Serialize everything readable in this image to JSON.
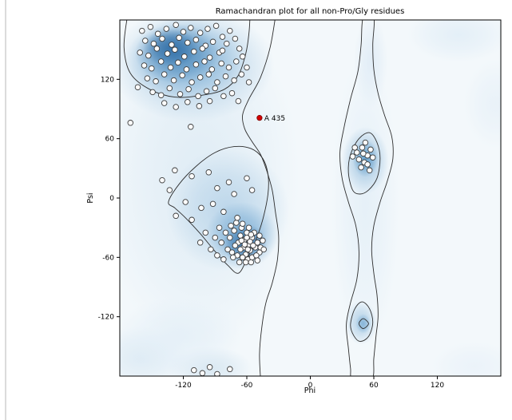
{
  "chart_data": {
    "type": "scatter",
    "title": "Ramachandran plot for all non-Pro/Gly residues",
    "xlabel": "Phi",
    "ylabel": "Psi",
    "xlim": [
      -180,
      180
    ],
    "ylim": [
      -180,
      180
    ],
    "xticks": [
      -120,
      -60,
      0,
      60,
      120
    ],
    "yticks": [
      120,
      60,
      0,
      -60,
      -120
    ],
    "grid": false,
    "legend": "none",
    "annotation": {
      "label": "A 435",
      "phi": -48,
      "psi": 81,
      "color": "#d40000"
    },
    "colors": {
      "figure_bg": "#ffffff",
      "plot_bg": "#f3f8fb",
      "contour_line": "#2d2d2d",
      "point_fill": "#fcfcfc",
      "point_edge": "#3c3c3c",
      "axis": "#000000"
    },
    "points": [
      [
        -159,
        169
      ],
      [
        -151,
        173
      ],
      [
        -144,
        166
      ],
      [
        -136,
        171
      ],
      [
        -127,
        175
      ],
      [
        -120,
        168
      ],
      [
        -113,
        172
      ],
      [
        -104,
        167
      ],
      [
        -97,
        171
      ],
      [
        -89,
        174
      ],
      [
        -156,
        159
      ],
      [
        -148,
        156
      ],
      [
        -140,
        161
      ],
      [
        -131,
        155
      ],
      [
        -124,
        162
      ],
      [
        -116,
        157
      ],
      [
        -108,
        160
      ],
      [
        -99,
        154
      ],
      [
        -92,
        158
      ],
      [
        -83,
        163
      ],
      [
        -161,
        147
      ],
      [
        -153,
        144
      ],
      [
        -145,
        151
      ],
      [
        -135,
        146
      ],
      [
        -128,
        150
      ],
      [
        -119,
        143
      ],
      [
        -110,
        148
      ],
      [
        -102,
        151
      ],
      [
        -95,
        142
      ],
      [
        -86,
        147
      ],
      [
        -76,
        169
      ],
      [
        -71,
        161
      ],
      [
        -67,
        151
      ],
      [
        -79,
        156
      ],
      [
        -83,
        149
      ],
      [
        -64,
        143
      ],
      [
        -157,
        134
      ],
      [
        -150,
        131
      ],
      [
        -141,
        138
      ],
      [
        -132,
        132
      ],
      [
        -125,
        137
      ],
      [
        -117,
        130
      ],
      [
        -108,
        135
      ],
      [
        -100,
        138
      ],
      [
        -93,
        130
      ],
      [
        -84,
        136
      ],
      [
        -77,
        132
      ],
      [
        -70,
        138
      ],
      [
        -154,
        121
      ],
      [
        -146,
        118
      ],
      [
        -138,
        125
      ],
      [
        -129,
        119
      ],
      [
        -121,
        124
      ],
      [
        -112,
        117
      ],
      [
        -104,
        122
      ],
      [
        -96,
        125
      ],
      [
        -88,
        117
      ],
      [
        -80,
        123
      ],
      [
        -72,
        119
      ],
      [
        -65,
        125
      ],
      [
        -149,
        107
      ],
      [
        -141,
        104
      ],
      [
        -133,
        111
      ],
      [
        -123,
        105
      ],
      [
        -115,
        110
      ],
      [
        -106,
        103
      ],
      [
        -98,
        108
      ],
      [
        -90,
        111
      ],
      [
        -82,
        103
      ],
      [
        -138,
        96
      ],
      [
        -127,
        92
      ],
      [
        -116,
        97
      ],
      [
        -105,
        93
      ],
      [
        -95,
        98
      ],
      [
        -74,
        106
      ],
      [
        -163,
        112
      ],
      [
        -68,
        98
      ],
      [
        -60,
        132
      ],
      [
        -58,
        117
      ],
      [
        -170,
        76
      ],
      [
        -113,
        72
      ],
      [
        -128,
        28
      ],
      [
        -112,
        22
      ],
      [
        -96,
        26
      ],
      [
        -133,
        8
      ],
      [
        -88,
        10
      ],
      [
        -118,
        -4
      ],
      [
        -103,
        -10
      ],
      [
        -77,
        16
      ],
      [
        -72,
        4
      ],
      [
        -92,
        -6
      ],
      [
        -127,
        -18
      ],
      [
        -112,
        -22
      ],
      [
        -82,
        -14
      ],
      [
        -140,
        18
      ],
      [
        -60,
        20
      ],
      [
        -55,
        8
      ],
      [
        -70,
        -25
      ],
      [
        -65,
        -30
      ],
      [
        -60,
        -35
      ],
      [
        -55,
        -40
      ],
      [
        -50,
        -45
      ],
      [
        -62,
        -42
      ],
      [
        -58,
        -47
      ],
      [
        -66,
        -38
      ],
      [
        -72,
        -33
      ],
      [
        -76,
        -40
      ],
      [
        -68,
        -45
      ],
      [
        -63,
        -50
      ],
      [
        -57,
        -53
      ],
      [
        -52,
        -50
      ],
      [
        -48,
        -55
      ],
      [
        -61,
        -57
      ],
      [
        -66,
        -52
      ],
      [
        -71,
        -48
      ],
      [
        -74,
        -55
      ],
      [
        -59,
        -62
      ],
      [
        -64,
        -60
      ],
      [
        -69,
        -58
      ],
      [
        -55,
        -60
      ],
      [
        -51,
        -58
      ],
      [
        -47,
        -50
      ],
      [
        -45,
        -43
      ],
      [
        -53,
        -35
      ],
      [
        -58,
        -30
      ],
      [
        -64,
        -26
      ],
      [
        -69,
        -20
      ],
      [
        -75,
        -28
      ],
      [
        -80,
        -35
      ],
      [
        -84,
        -45
      ],
      [
        -78,
        -52
      ],
      [
        -73,
        -60
      ],
      [
        -67,
        -65
      ],
      [
        -61,
        -65
      ],
      [
        -56,
        -65
      ],
      [
        -86,
        -30
      ],
      [
        -90,
        -40
      ],
      [
        -94,
        -52
      ],
      [
        -88,
        -58
      ],
      [
        -82,
        -62
      ],
      [
        -99,
        -35
      ],
      [
        -104,
        -45
      ],
      [
        -48,
        -38
      ],
      [
        -44,
        -52
      ],
      [
        -50,
        -63
      ],
      [
        -57,
        -44
      ],
      [
        -54,
        -48
      ],
      [
        -59,
        -52
      ],
      [
        -65,
        -43
      ],
      [
        -60,
        -40
      ],
      [
        -56,
        -37
      ],
      [
        -62,
        -47
      ],
      [
        44,
        46
      ],
      [
        49,
        51
      ],
      [
        54,
        43
      ],
      [
        51,
        36
      ],
      [
        57,
        49
      ],
      [
        46,
        39
      ],
      [
        52,
        56
      ],
      [
        59,
        41
      ],
      [
        48,
        31
      ],
      [
        54,
        34
      ],
      [
        42,
        51
      ],
      [
        50,
        45
      ],
      [
        56,
        28
      ],
      [
        40,
        42
      ],
      [
        -102,
        -177
      ],
      [
        -95,
        -171
      ],
      [
        -88,
        -178
      ],
      [
        -110,
        -174
      ],
      [
        -76,
        -173
      ]
    ],
    "density_regions": [
      {
        "cx": -105,
        "cy": 20,
        "rx": 95,
        "ry": 175,
        "color": "#dceaf4",
        "opacity": 0.85
      },
      {
        "cx": -112,
        "cy": 135,
        "rx": 78,
        "ry": 58,
        "color": "#aecde5",
        "opacity": 0.9
      },
      {
        "cx": -118,
        "cy": 140,
        "rx": 56,
        "ry": 42,
        "color": "#7fb0d6",
        "opacity": 0.85
      },
      {
        "cx": -126,
        "cy": 146,
        "rx": 40,
        "ry": 30,
        "color": "#4a86b8",
        "opacity": 0.85
      },
      {
        "cx": -132,
        "cy": 152,
        "rx": 26,
        "ry": 19,
        "color": "#2e6ba4",
        "opacity": 0.8
      },
      {
        "cx": -78,
        "cy": -12,
        "rx": 58,
        "ry": 62,
        "color": "#b5d2e8",
        "opacity": 0.85
      },
      {
        "cx": -65,
        "cy": -38,
        "rx": 34,
        "ry": 34,
        "color": "#74a9d2",
        "opacity": 0.85
      },
      {
        "cx": -62,
        "cy": -46,
        "rx": 21,
        "ry": 20,
        "color": "#2f6da6",
        "opacity": 0.85
      },
      {
        "cx": 52,
        "cy": -5,
        "rx": 32,
        "ry": 150,
        "color": "#e2eef7",
        "opacity": 0.8
      },
      {
        "cx": 57,
        "cy": 138,
        "rx": 16,
        "ry": 48,
        "color": "#e0ecf6",
        "opacity": 0.9
      },
      {
        "cx": 52,
        "cy": 38,
        "rx": 22,
        "ry": 34,
        "color": "#9fc4e0",
        "opacity": 0.9
      },
      {
        "cx": 52,
        "cy": 40,
        "rx": 12,
        "ry": 19,
        "color": "#5f9bc8",
        "opacity": 0.9
      },
      {
        "cx": 48,
        "cy": -126,
        "rx": 15,
        "ry": 22,
        "color": "#a9cbe4",
        "opacity": 0.85
      },
      {
        "cx": 50,
        "cy": -127,
        "rx": 7,
        "ry": 10,
        "color": "#7fb0d6",
        "opacity": 0.85
      },
      {
        "cx": 140,
        "cy": 165,
        "rx": 48,
        "ry": 28,
        "color": "#e2eef7",
        "opacity": 0.9
      },
      {
        "cx": 175,
        "cy": 95,
        "rx": 30,
        "ry": 45,
        "color": "#e8f1f8",
        "opacity": 0.9
      },
      {
        "cx": -160,
        "cy": -162,
        "rx": 45,
        "ry": 32,
        "color": "#dceaf4",
        "opacity": 0.9
      },
      {
        "cx": -95,
        "cy": -172,
        "rx": 40,
        "ry": 22,
        "color": "#d6e6f1",
        "opacity": 0.9
      },
      {
        "cx": -125,
        "cy": -140,
        "rx": 60,
        "ry": 40,
        "color": "#e2eef7",
        "opacity": 0.8
      },
      {
        "cx": 155,
        "cy": -170,
        "rx": 40,
        "ry": 25,
        "color": "#eaf2f9",
        "opacity": 0.9
      }
    ],
    "contours": [
      {
        "name": "left-outer",
        "closed": false,
        "points": [
          [
            -33,
            183
          ],
          [
            -38,
            152
          ],
          [
            -47,
            122
          ],
          [
            -58,
            100
          ],
          [
            -64,
            84
          ],
          [
            -62,
            70
          ],
          [
            -55,
            57
          ],
          [
            -47,
            44
          ],
          [
            -41,
            27
          ],
          [
            -36,
            8
          ],
          [
            -33,
            -14
          ],
          [
            -30,
            -38
          ],
          [
            -31,
            -62
          ],
          [
            -36,
            -86
          ],
          [
            -42,
            -106
          ],
          [
            -46,
            -132
          ],
          [
            -48,
            -158
          ],
          [
            -47,
            -183
          ]
        ]
      },
      {
        "name": "beta-inner",
        "closed": false,
        "points": [
          [
            -173,
            183
          ],
          [
            -176,
            152
          ],
          [
            -170,
            126
          ],
          [
            -152,
            110
          ],
          [
            -128,
            102
          ],
          [
            -102,
            104
          ],
          [
            -81,
            110
          ],
          [
            -68,
            124
          ],
          [
            -61,
            146
          ],
          [
            -58,
            166
          ],
          [
            -57,
            183
          ]
        ]
      },
      {
        "name": "alpha-inner",
        "closed": true,
        "points": [
          [
            -134,
            -4
          ],
          [
            -124,
            14
          ],
          [
            -108,
            32
          ],
          [
            -90,
            46
          ],
          [
            -72,
            52
          ],
          [
            -56,
            50
          ],
          [
            -45,
            40
          ],
          [
            -40,
            24
          ],
          [
            -40,
            4
          ],
          [
            -45,
            -22
          ],
          [
            -52,
            -44
          ],
          [
            -60,
            -62
          ],
          [
            -68,
            -76
          ],
          [
            -78,
            -68
          ],
          [
            -90,
            -54
          ],
          [
            -104,
            -36
          ],
          [
            -118,
            -20
          ],
          [
            -128,
            -10
          ]
        ]
      },
      {
        "name": "right-outer",
        "closed": true,
        "points": [
          [
            50,
            183
          ],
          [
            48,
            155
          ],
          [
            45,
            128
          ],
          [
            38,
            100
          ],
          [
            32,
            72
          ],
          [
            28,
            46
          ],
          [
            30,
            20
          ],
          [
            36,
            -4
          ],
          [
            43,
            -28
          ],
          [
            46,
            -54
          ],
          [
            44,
            -82
          ],
          [
            38,
            -106
          ],
          [
            34,
            -128
          ],
          [
            36,
            -152
          ],
          [
            38,
            -172
          ],
          [
            40,
            -183
          ],
          [
            58,
            -183
          ],
          [
            60,
            -162
          ],
          [
            62,
            -140
          ],
          [
            64,
            -120
          ],
          [
            63,
            -98
          ],
          [
            60,
            -76
          ],
          [
            58,
            -52
          ],
          [
            60,
            -28
          ],
          [
            66,
            -4
          ],
          [
            73,
            18
          ],
          [
            78,
            40
          ],
          [
            77,
            62
          ],
          [
            70,
            84
          ],
          [
            64,
            106
          ],
          [
            60,
            130
          ],
          [
            59,
            155
          ],
          [
            60,
            183
          ]
        ]
      },
      {
        "name": "lh-inner",
        "closed": true,
        "points": [
          [
            40,
            8
          ],
          [
            36,
            26
          ],
          [
            38,
            44
          ],
          [
            46,
            60
          ],
          [
            56,
            66
          ],
          [
            63,
            56
          ],
          [
            66,
            40
          ],
          [
            63,
            20
          ],
          [
            55,
            8
          ],
          [
            47,
            4
          ]
        ]
      },
      {
        "name": "bottom-small",
        "closed": true,
        "points": [
          [
            38,
            -128
          ],
          [
            42,
            -112
          ],
          [
            49,
            -105
          ],
          [
            56,
            -112
          ],
          [
            59,
            -126
          ],
          [
            55,
            -140
          ],
          [
            47,
            -145
          ],
          [
            41,
            -139
          ]
        ]
      },
      {
        "name": "bottom-tiny",
        "closed": true,
        "points": [
          [
            46,
            -127
          ],
          [
            50,
            -122
          ],
          [
            55,
            -127
          ],
          [
            50,
            -132
          ]
        ]
      }
    ]
  }
}
